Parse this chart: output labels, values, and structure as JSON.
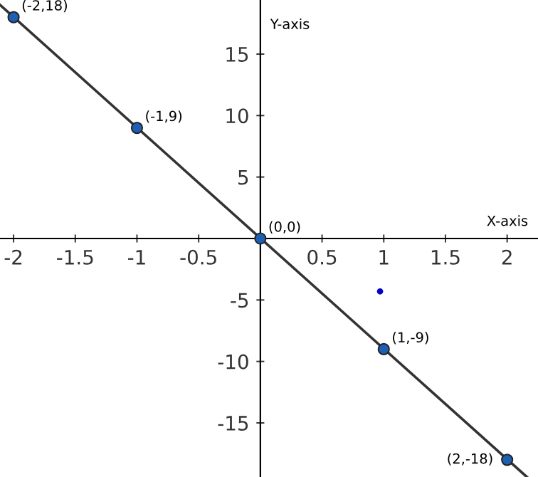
{
  "chart_data": {
    "type": "scatter",
    "xlabel": "X-axis",
    "ylabel": "Y-axis",
    "xlim": [
      -2.11,
      2.25
    ],
    "ylim": [
      -19.4,
      19.4
    ],
    "xticks": [
      -2,
      -1.5,
      -1,
      -0.5,
      0.5,
      1,
      1.5,
      2
    ],
    "yticks": [
      -15,
      -10,
      -5,
      5,
      10,
      15
    ],
    "grid": false,
    "series": [
      {
        "type": "line",
        "color": "#333333",
        "x": [
          -2.11,
          2.16
        ],
        "values": [
          19,
          -19.4
        ],
        "marker": "none",
        "line_style": "solid"
      },
      {
        "color": "#1e5fb4",
        "x": [
          -2,
          -1,
          0,
          1,
          2
        ],
        "values": [
          18,
          9,
          0,
          -9,
          -18
        ],
        "marker": "circle"
      },
      {
        "color": "#0000cc",
        "x": [
          0.97
        ],
        "values": [
          -4.3
        ],
        "marker": "circle"
      }
    ],
    "annotations": [
      {
        "text": "(-2,18)",
        "x": -2,
        "y": 18
      },
      {
        "text": "(-1,9)",
        "x": -1,
        "y": 9
      },
      {
        "text": "(0,0)",
        "x": 0,
        "y": 0
      },
      {
        "text": "(1,-9)",
        "x": 1,
        "y": -9
      },
      {
        "text": "(2,-18)",
        "x": 2,
        "y": -18
      }
    ]
  }
}
